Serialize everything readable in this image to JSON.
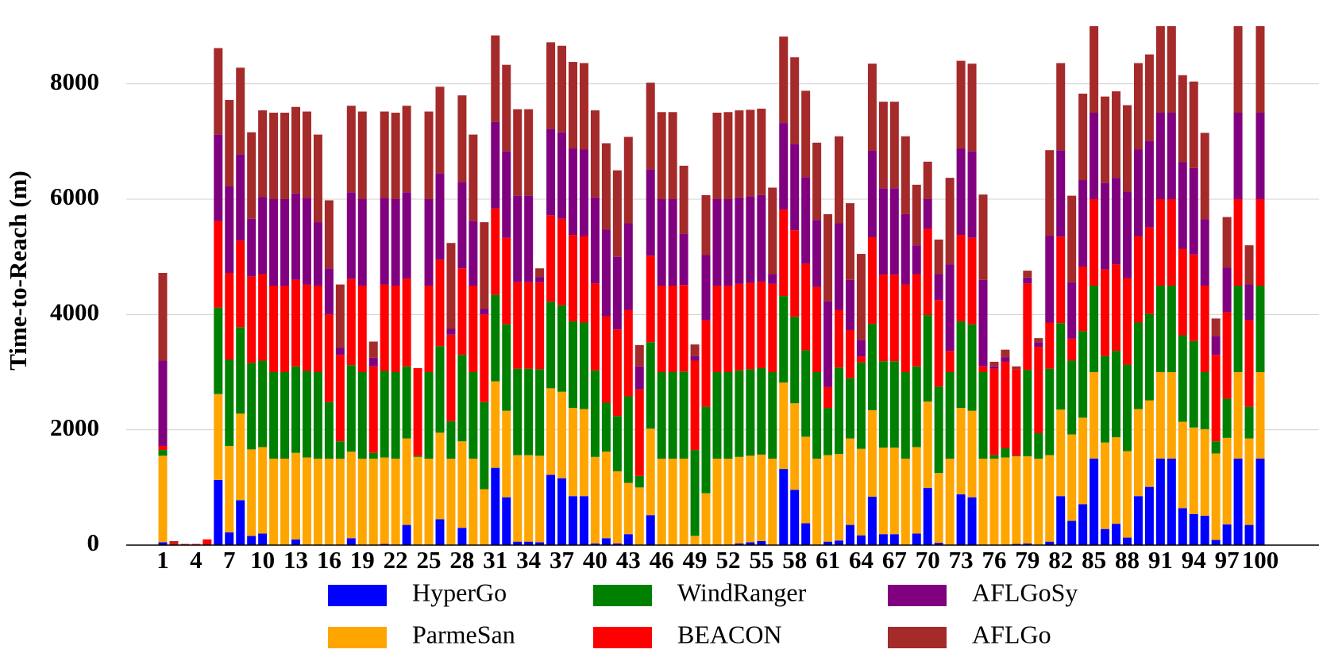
{
  "chart_data": {
    "type": "stacked_bar",
    "y_label": "Time-to-Reach (m)",
    "categories": [
      "1",
      null,
      null,
      "4",
      null,
      null,
      "7",
      null,
      null,
      "10",
      null,
      null,
      "13",
      null,
      null,
      "16",
      null,
      null,
      "19",
      null,
      null,
      "22",
      null,
      null,
      "25",
      null,
      null,
      "28",
      null,
      null,
      "31",
      null,
      null,
      "34",
      null,
      null,
      "37",
      null,
      null,
      "40",
      null,
      null,
      "43",
      null,
      null,
      "46",
      null,
      null,
      "49",
      null,
      null,
      "52",
      null,
      null,
      "55",
      null,
      null,
      "58",
      null,
      null,
      "61",
      null,
      null,
      "64",
      null,
      null,
      "67",
      null,
      null,
      "70",
      null,
      null,
      "73",
      null,
      null,
      "76",
      null,
      null,
      "79",
      null,
      null,
      "82",
      null,
      null,
      "85",
      null,
      null,
      "88",
      null,
      null,
      "91",
      null,
      null,
      "94",
      null,
      null,
      "97",
      null,
      null,
      "100"
    ],
    "series": [
      {
        "name": "HyperGo",
        "color": "#0000ff",
        "values": [
          50,
          0,
          0,
          0,
          0,
          1130,
          220,
          780,
          160,
          200,
          0,
          0,
          100,
          0,
          0,
          0,
          0,
          120,
          0,
          0,
          20,
          0,
          350,
          0,
          0,
          450,
          0,
          300,
          0,
          0,
          1340,
          830,
          60,
          60,
          50,
          1220,
          1160,
          850,
          850,
          30,
          120,
          30,
          190,
          0,
          520,
          0,
          0,
          0,
          0,
          0,
          0,
          0,
          30,
          50,
          70,
          0,
          1320,
          960,
          380,
          0,
          60,
          80,
          350,
          170,
          840,
          190,
          190,
          0,
          200,
          990,
          40,
          0,
          880,
          830,
          0,
          0,
          0,
          20,
          30,
          0,
          60,
          850,
          420,
          710,
          1500,
          280,
          370,
          130,
          850,
          1010,
          1500,
          1500,
          640,
          540,
          510,
          90,
          360,
          1500,
          350,
          1500
        ]
      },
      {
        "name": "ParmeSan",
        "color": "#ffa500",
        "values": [
          1500,
          0,
          0,
          0,
          0,
          1490,
          1500,
          1500,
          1500,
          1500,
          1500,
          1500,
          1500,
          1520,
          1500,
          1500,
          1500,
          1500,
          1500,
          1500,
          1500,
          1500,
          1500,
          1530,
          1500,
          1500,
          1500,
          1500,
          1500,
          970,
          1500,
          1500,
          1500,
          1500,
          1500,
          1500,
          1500,
          1530,
          1510,
          1500,
          1500,
          1250,
          890,
          1000,
          1500,
          1500,
          1500,
          1500,
          160,
          900,
          1500,
          1500,
          1500,
          1500,
          1500,
          1500,
          1500,
          1500,
          1500,
          1500,
          1500,
          1500,
          1500,
          1500,
          1500,
          1500,
          1500,
          1500,
          1500,
          1500,
          1210,
          1500,
          1500,
          1500,
          1500,
          1500,
          1520,
          1520,
          1510,
          1500,
          1500,
          1500,
          1500,
          1500,
          1500,
          1500,
          1500,
          1500,
          1510,
          1500,
          1500,
          1500,
          1500,
          1500,
          1500,
          1500,
          1500,
          1500,
          1500,
          1500
        ]
      },
      {
        "name": "WindRanger",
        "color": "#008000",
        "values": [
          100,
          0,
          0,
          0,
          0,
          1500,
          1500,
          1500,
          1500,
          1500,
          1500,
          1500,
          1500,
          1500,
          1500,
          980,
          300,
          1500,
          1500,
          100,
          1500,
          1500,
          1250,
          20,
          1500,
          1500,
          650,
          1500,
          1500,
          1510,
          1500,
          1500,
          1500,
          1500,
          1500,
          1500,
          1500,
          1500,
          1500,
          1500,
          850,
          960,
          1500,
          200,
          1500,
          1500,
          1500,
          1510,
          1490,
          1500,
          1500,
          1500,
          1500,
          1500,
          1500,
          1500,
          1500,
          1500,
          1500,
          1500,
          820,
          1500,
          1050,
          1500,
          1500,
          1500,
          1500,
          1500,
          1400,
          1500,
          1500,
          1500,
          1500,
          1500,
          1500,
          60,
          160,
          10,
          1500,
          440,
          1500,
          1500,
          1280,
          1500,
          1500,
          1500,
          1500,
          1500,
          1500,
          1500,
          1500,
          1500,
          1500,
          1500,
          990,
          210,
          680,
          1500,
          550,
          1500
        ]
      },
      {
        "name": "BEACON",
        "color": "#ff0000",
        "values": [
          70,
          40,
          20,
          20,
          100,
          1500,
          1500,
          1500,
          1500,
          1500,
          1500,
          1500,
          1500,
          1500,
          1500,
          1520,
          1500,
          1500,
          1500,
          1500,
          1500,
          1500,
          1520,
          1520,
          1500,
          1500,
          1500,
          1500,
          1500,
          1520,
          1500,
          1500,
          1500,
          1500,
          1510,
          1500,
          1500,
          1500,
          1500,
          1510,
          1500,
          1500,
          1500,
          1500,
          1500,
          1500,
          1500,
          1500,
          1550,
          1500,
          1500,
          1500,
          1500,
          1500,
          1500,
          1530,
          1500,
          1500,
          1500,
          1480,
          360,
          1000,
          830,
          100,
          1500,
          1500,
          1500,
          1520,
          1600,
          1500,
          1500,
          370,
          1500,
          1500,
          100,
          1500,
          1500,
          1500,
          1500,
          1500,
          800,
          1500,
          380,
          1120,
          1500,
          1500,
          1500,
          1500,
          1500,
          1500,
          1500,
          1500,
          1500,
          1500,
          1500,
          1500,
          1500,
          1500,
          1500,
          1500
        ]
      },
      {
        "name": "AFLGoSy",
        "color": "#800080",
        "values": [
          1480,
          0,
          0,
          0,
          0,
          1500,
          1500,
          1500,
          1000,
          1340,
          1500,
          1500,
          1500,
          1500,
          1100,
          800,
          120,
          1500,
          1500,
          150,
          1500,
          1500,
          1500,
          0,
          1500,
          1500,
          100,
          1500,
          1120,
          100,
          1500,
          1500,
          1500,
          1500,
          90,
          1500,
          1500,
          1500,
          1500,
          1490,
          1500,
          1260,
          1500,
          400,
          1500,
          1500,
          1500,
          890,
          80,
          1130,
          1500,
          1500,
          1500,
          1500,
          1500,
          170,
          1500,
          1500,
          1500,
          1160,
          1490,
          1500,
          870,
          290,
          1500,
          1500,
          1500,
          1220,
          500,
          510,
          450,
          1500,
          1500,
          1500,
          1500,
          40,
          80,
          0,
          100,
          80,
          1500,
          1500,
          980,
          1500,
          1500,
          1500,
          1500,
          1500,
          1500,
          1500,
          1500,
          1500,
          1500,
          1500,
          1150,
          320,
          770,
          1500,
          620,
          1500
        ]
      },
      {
        "name": "AFLGo",
        "color": "#a52a2a",
        "values": [
          1520,
          30,
          0,
          0,
          0,
          1500,
          1500,
          1500,
          1500,
          1500,
          1500,
          1500,
          1500,
          1500,
          1520,
          1180,
          1100,
          1500,
          1520,
          280,
          1500,
          1500,
          1500,
          0,
          1520,
          1500,
          1490,
          1500,
          1500,
          1500,
          1500,
          1500,
          1500,
          1500,
          150,
          1500,
          1500,
          1500,
          1500,
          1510,
          1500,
          1500,
          1500,
          370,
          1500,
          1510,
          1510,
          1180,
          200,
          1040,
          1500,
          1510,
          1510,
          1500,
          1500,
          1500,
          1500,
          1500,
          1500,
          1340,
          1510,
          1510,
          1330,
          1490,
          1510,
          1500,
          1500,
          1350,
          1050,
          650,
          600,
          1500,
          1520,
          1520,
          1480,
          80,
          130,
          50,
          120,
          70,
          1490,
          1510,
          1500,
          1500,
          1500,
          1500,
          1500,
          1500,
          1500,
          1500,
          1500,
          1500,
          1510,
          1500,
          1500,
          310,
          880,
          1500,
          680,
          1500
        ]
      }
    ],
    "ylim": [
      0,
      9000
    ],
    "yticks": [
      0,
      2000,
      4000,
      6000,
      8000
    ],
    "grid": true
  }
}
